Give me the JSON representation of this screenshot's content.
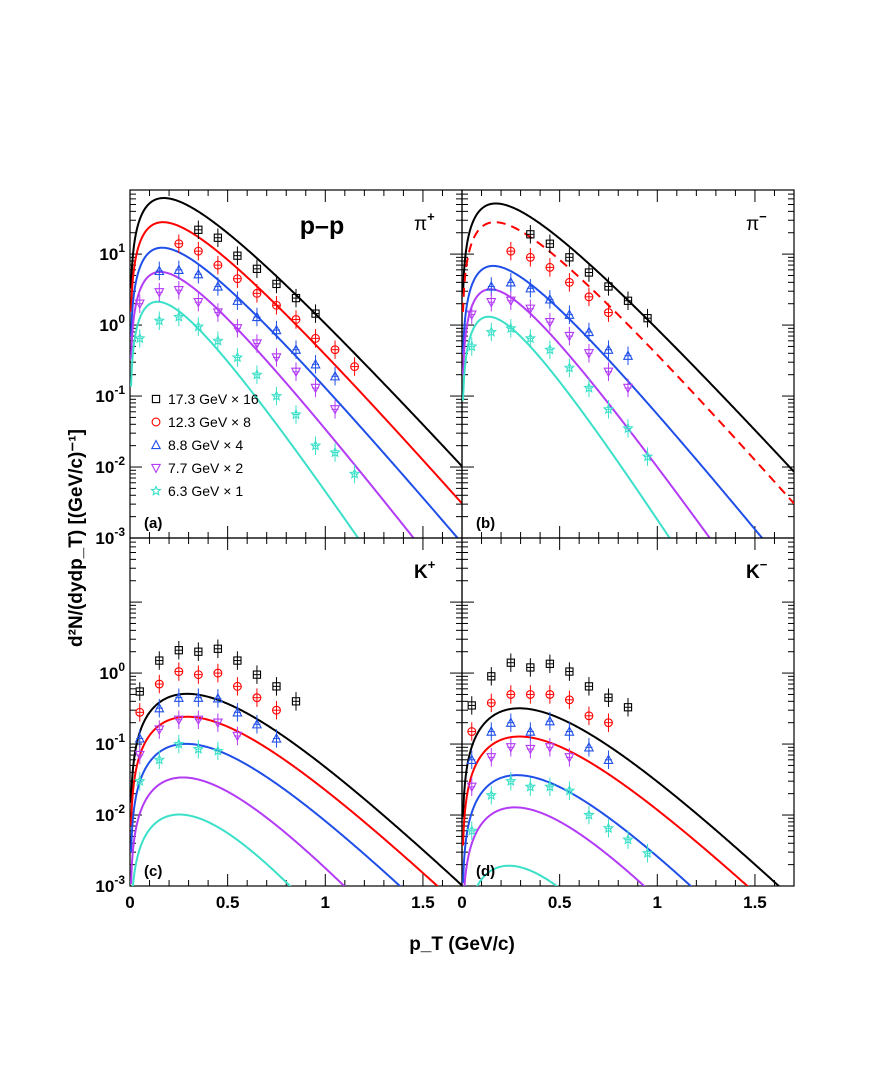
{
  "chart_data": {
    "type": "scatter",
    "system_label": "p–p",
    "xlabel": "p_T (GeV/c)",
    "ylabel": "d²N/(dydp_T) [(GeV/c)⁻¹]",
    "xlim": [
      0,
      1.7
    ],
    "ylim": [
      0.001,
      80
    ],
    "yscale": "log",
    "x_ticks": [
      "0",
      "0.5",
      "1",
      "1.5"
    ],
    "y_ticks": [
      "10⁻³",
      "10⁻²",
      "10⁻¹",
      "10⁰",
      "10¹"
    ],
    "legend": [
      {
        "label": "17.3 GeV × 16",
        "marker": "square",
        "color": "#000000"
      },
      {
        "label": "12.3 GeV × 8",
        "marker": "circle",
        "color": "#ff0000"
      },
      {
        "label": "8.8 GeV × 4",
        "marker": "triangle-up",
        "color": "#1f4fe8"
      },
      {
        "label": "7.7 GeV × 2",
        "marker": "triangle-down",
        "color": "#b33bf5"
      },
      {
        "label": "6.3 GeV × 1",
        "marker": "star",
        "color": "#3ae0c8"
      }
    ],
    "colors": [
      "#000000",
      "#ff0000",
      "#1f4fe8",
      "#b33bf5",
      "#3ae0c8"
    ],
    "panels": [
      {
        "id": "a",
        "tag": "(a)",
        "particle": "π",
        "charge": "+",
        "fit": [
          {
            "A": 1850,
            "T": 0.135,
            "m": 0.1396
          },
          {
            "A": 900,
            "T": 0.13,
            "m": 0.1396
          },
          {
            "A": 420,
            "T": 0.125,
            "m": 0.1396
          },
          {
            "A": 222,
            "T": 0.115,
            "m": 0.1396
          },
          {
            "A": 110,
            "T": 0.1,
            "m": 0.1396
          }
        ],
        "series": [
          {
            "x": [
              0.35,
              0.45,
              0.55,
              0.65,
              0.75,
              0.85,
              0.95
            ],
            "y": [
              22,
              17,
              9.5,
              6.2,
              3.8,
              2.4,
              1.45
            ]
          },
          {
            "x": [
              0.25,
              0.35,
              0.45,
              0.55,
              0.65,
              0.75,
              0.85,
              0.95,
              1.05,
              1.15
            ],
            "y": [
              14,
              11,
              7,
              4.5,
              2.8,
              1.9,
              1.2,
              0.65,
              0.45,
              0.26
            ]
          },
          {
            "x": [
              0.15,
              0.25,
              0.35,
              0.45,
              0.55,
              0.65,
              0.75,
              0.85,
              0.95,
              1.05
            ],
            "y": [
              5.8,
              6,
              5.2,
              3.5,
              2.2,
              1.3,
              0.85,
              0.45,
              0.28,
              0.19
            ]
          },
          {
            "x": [
              0.05,
              0.15,
              0.25,
              0.35,
              0.45,
              0.55,
              0.65,
              0.75,
              0.85,
              0.95,
              1.05
            ],
            "y": [
              2,
              2.9,
              3.1,
              2.1,
              1.5,
              0.9,
              0.55,
              0.35,
              0.22,
              0.13,
              0.065
            ]
          },
          {
            "x": [
              0.05,
              0.15,
              0.25,
              0.35,
              0.45,
              0.55,
              0.65,
              0.75,
              0.85,
              0.95,
              1.05,
              1.15
            ],
            "y": [
              0.65,
              1.15,
              1.3,
              0.95,
              0.6,
              0.35,
              0.2,
              0.1,
              0.055,
              0.02,
              0.016,
              0.008
            ]
          }
        ]
      },
      {
        "id": "b",
        "tag": "(b)",
        "particle": "π",
        "charge": "−",
        "fit": [
          {
            "A": 1550,
            "T": 0.135,
            "m": 0.1396
          },
          {
            "A": 900,
            "T": 0.13,
            "m": 0.1396,
            "dashed": true
          },
          {
            "A": 250,
            "T": 0.12,
            "m": 0.1396
          },
          {
            "A": 150,
            "T": 0.105,
            "m": 0.1396
          },
          {
            "A": 75,
            "T": 0.095,
            "m": 0.1396
          }
        ],
        "series": [
          {
            "x": [
              0.35,
              0.45,
              0.55,
              0.65,
              0.75,
              0.85,
              0.95
            ],
            "y": [
              19,
              14,
              9,
              5.5,
              3.5,
              2.2,
              1.25
            ]
          },
          {
            "x": [
              0.25,
              0.35,
              0.45,
              0.55,
              0.65,
              0.75
            ],
            "y": [
              11,
              9,
              6.5,
              4,
              2.5,
              1.5
            ]
          },
          {
            "x": [
              0.15,
              0.25,
              0.35,
              0.45,
              0.55,
              0.65,
              0.75,
              0.85
            ],
            "y": [
              3.5,
              4,
              3.3,
              2.3,
              1.4,
              0.8,
              0.45,
              0.37
            ]
          },
          {
            "x": [
              0.05,
              0.15,
              0.25,
              0.35,
              0.45,
              0.55,
              0.65,
              0.75,
              0.85
            ],
            "y": [
              1.4,
              2.1,
              2.2,
              1.7,
              1.1,
              0.7,
              0.4,
              0.22,
              0.13
            ]
          },
          {
            "x": [
              0.05,
              0.15,
              0.25,
              0.35,
              0.45,
              0.55,
              0.65,
              0.75,
              0.85,
              0.95
            ],
            "y": [
              0.5,
              0.8,
              0.9,
              0.65,
              0.45,
              0.25,
              0.13,
              0.065,
              0.035,
              0.014
            ]
          }
        ]
      },
      {
        "id": "c",
        "tag": "(c)",
        "particle": "K",
        "charge": "+",
        "fit": [
          {
            "A": 80,
            "T": 0.15,
            "m": 0.4937
          },
          {
            "A": 38,
            "T": 0.15,
            "m": 0.4937
          },
          {
            "A": 18,
            "T": 0.145,
            "m": 0.4937
          },
          {
            "A": 9.5,
            "T": 0.13,
            "m": 0.4937
          },
          {
            "A": 5,
            "T": 0.115,
            "m": 0.4937
          }
        ],
        "series": [
          {
            "x": [
              0.05,
              0.15,
              0.25,
              0.35,
              0.45,
              0.55,
              0.65,
              0.75,
              0.85
            ],
            "y": [
              0.55,
              1.5,
              2.1,
              2,
              2.2,
              1.5,
              0.95,
              0.65,
              0.4
            ]
          },
          {
            "x": [
              0.05,
              0.15,
              0.25,
              0.35,
              0.45,
              0.55,
              0.65,
              0.75
            ],
            "y": [
              0.28,
              0.7,
              1.05,
              0.95,
              1,
              0.65,
              0.45,
              0.3
            ]
          },
          {
            "x": [
              0.05,
              0.15,
              0.25,
              0.35,
              0.45,
              0.55,
              0.65,
              0.75
            ],
            "y": [
              0.12,
              0.32,
              0.45,
              0.45,
              0.44,
              0.28,
              0.19,
              0.12
            ]
          },
          {
            "x": [
              0.05,
              0.15,
              0.25,
              0.35,
              0.45,
              0.55
            ],
            "y": [
              0.07,
              0.16,
              0.22,
              0.22,
              0.2,
              0.13
            ]
          },
          {
            "x": [
              0.05,
              0.15,
              0.25,
              0.35,
              0.45
            ],
            "y": [
              0.03,
              0.06,
              0.1,
              0.085,
              0.08
            ]
          }
        ]
      },
      {
        "id": "d",
        "tag": "(d)",
        "particle": "K",
        "charge": "−",
        "fit": [
          {
            "A": 50,
            "T": 0.15,
            "m": 0.4937
          },
          {
            "A": 20,
            "T": 0.15,
            "m": 0.4937
          },
          {
            "A": 7.5,
            "T": 0.14,
            "m": 0.4937
          },
          {
            "A": 3.6,
            "T": 0.13,
            "m": 0.4937
          },
          {
            "A": 1.5,
            "T": 0.105,
            "m": 0.4937
          }
        ],
        "series": [
          {
            "x": [
              0.05,
              0.15,
              0.25,
              0.35,
              0.45,
              0.55,
              0.65,
              0.75,
              0.85
            ],
            "y": [
              0.35,
              0.9,
              1.4,
              1.2,
              1.35,
              1.05,
              0.65,
              0.45,
              0.33
            ]
          },
          {
            "x": [
              0.05,
              0.15,
              0.25,
              0.35,
              0.45,
              0.55,
              0.65,
              0.75
            ],
            "y": [
              0.15,
              0.38,
              0.5,
              0.5,
              0.5,
              0.42,
              0.25,
              0.2
            ]
          },
          {
            "x": [
              0.05,
              0.15,
              0.25,
              0.35,
              0.45,
              0.55,
              0.65,
              0.75
            ],
            "y": [
              0.06,
              0.15,
              0.2,
              0.15,
              0.21,
              0.15,
              0.09,
              0.06
            ]
          },
          {
            "x": [
              0.05,
              0.15,
              0.25,
              0.35,
              0.45,
              0.55
            ],
            "y": [
              0.025,
              0.065,
              0.09,
              0.085,
              0.09,
              0.065
            ]
          },
          {
            "x": [
              0.05,
              0.15,
              0.25,
              0.35,
              0.45,
              0.55,
              0.65,
              0.75,
              0.85,
              0.95
            ],
            "y": [
              0.006,
              0.019,
              0.03,
              0.025,
              0.025,
              0.022,
              0.01,
              0.0065,
              0.0045,
              0.0029
            ]
          }
        ]
      }
    ]
  }
}
